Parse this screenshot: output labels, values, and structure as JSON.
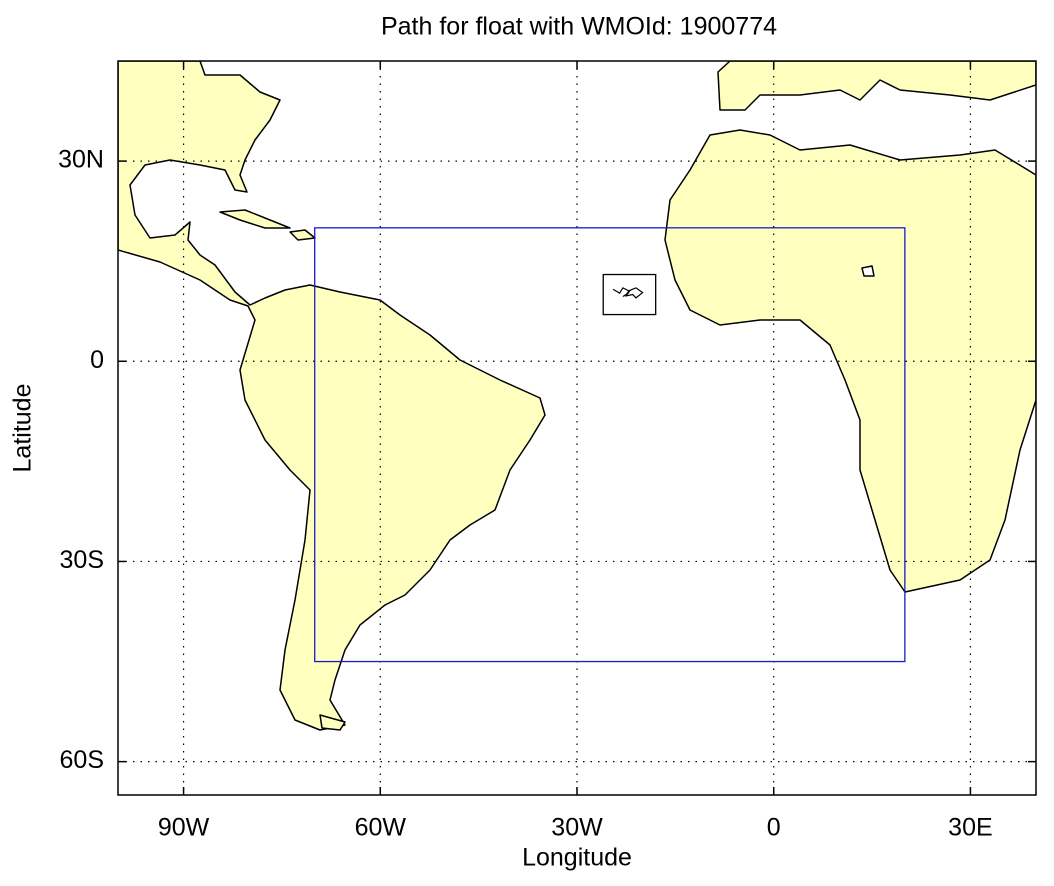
{
  "chart_data": {
    "type": "map",
    "title": "Path for float with WMOId: 1900774",
    "x_label": "Longitude",
    "y_label": "Latitude",
    "xlim": [
      -100,
      40
    ],
    "ylim": [
      -65,
      45
    ],
    "xticks": [
      {
        "value": -90,
        "label": "90W"
      },
      {
        "value": -60,
        "label": "60W"
      },
      {
        "value": -30,
        "label": "30W"
      },
      0,
      {
        "value": 30,
        "label": "30E"
      }
    ],
    "yticks": [
      {
        "value": -60,
        "label": "60S"
      },
      {
        "value": -30,
        "label": "30S"
      },
      0,
      {
        "value": 30,
        "label": "30N"
      }
    ],
    "grid": true,
    "land_color": "#ffffc0",
    "region_box": {
      "xlim": [
        -70,
        20
      ],
      "ylim": [
        -45,
        20
      ],
      "color": "#1a1acc"
    },
    "inset_box": {
      "xlim": [
        -26,
        -18
      ],
      "ylim": [
        7,
        13
      ],
      "color": "#000000"
    },
    "track": {
      "x": [
        -24.5,
        -23.5,
        -23,
        -22,
        -22.5,
        -21.5,
        -21,
        -20,
        -21,
        -22,
        -22.5,
        -23
      ],
      "y": [
        10.8,
        10.2,
        11,
        10.5,
        9.8,
        10,
        9.5,
        10.3,
        11,
        10.6,
        10,
        9.7
      ],
      "color": "#000000"
    }
  }
}
